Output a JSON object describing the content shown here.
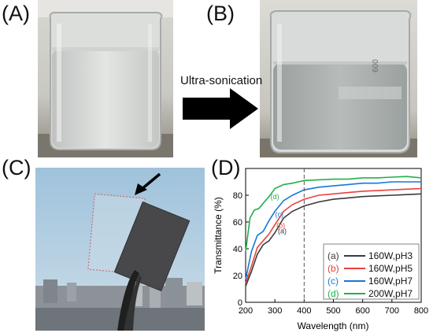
{
  "panels": {
    "a": {
      "label": "(A)"
    },
    "b": {
      "label": "(B)"
    },
    "c": {
      "label": "(C)"
    },
    "d": {
      "label": "(D)"
    }
  },
  "arrow": {
    "label": "Ultra-sonication"
  },
  "beaker_marks": {
    "b_scale": "600"
  },
  "colors": {
    "a": "#3a3a3a",
    "b": "#e8413c",
    "c": "#1577d8",
    "d": "#22b04b",
    "sample_outline": "#e02020"
  },
  "chart_data": {
    "type": "line",
    "xlabel": "Wavelength (nm)",
    "ylabel": "Transmittance (%)",
    "xlim": [
      200,
      800
    ],
    "ylim": [
      0,
      100
    ],
    "xticks": [
      200,
      300,
      400,
      500,
      600,
      700,
      800
    ],
    "yticks": [
      0,
      20,
      40,
      60,
      80
    ],
    "reference_line_x": 400,
    "legend_position": "bottom-right",
    "series": [
      {
        "name": "160W,pH3",
        "tag": "(a)",
        "x": [
          200,
          220,
          240,
          260,
          280,
          300,
          330,
          360,
          400,
          450,
          500,
          550,
          600,
          650,
          700,
          750,
          800
        ],
        "y": [
          12,
          23,
          36,
          43,
          46,
          52,
          63,
          68,
          72,
          75,
          77,
          78,
          79,
          79.5,
          80,
          80.5,
          81
        ]
      },
      {
        "name": "160W,pH5",
        "tag": "(b)",
        "x": [
          200,
          220,
          240,
          260,
          280,
          300,
          330,
          360,
          400,
          450,
          500,
          550,
          600,
          650,
          700,
          750,
          800
        ],
        "y": [
          14,
          27,
          41,
          46,
          51,
          58,
          68,
          73,
          77,
          80,
          81,
          82,
          83,
          83.5,
          84,
          84.5,
          85
        ]
      },
      {
        "name": "160W,pH7",
        "tag": "(c)",
        "x": [
          200,
          220,
          240,
          260,
          280,
          300,
          330,
          360,
          400,
          450,
          500,
          550,
          600,
          650,
          700,
          750,
          800
        ],
        "y": [
          17,
          38,
          50,
          53,
          61,
          68,
          76,
          80,
          84,
          86,
          87,
          88,
          89,
          89,
          90,
          90,
          90
        ]
      },
      {
        "name": "200W,pH7",
        "tag": "(d)",
        "x": [
          200,
          215,
          230,
          245,
          260,
          280,
          300,
          330,
          360,
          400,
          450,
          500,
          550,
          600,
          650,
          700,
          750,
          800
        ],
        "y": [
          38,
          63,
          69,
          70,
          74,
          79,
          85,
          88,
          89,
          91,
          91.5,
          92,
          92,
          93,
          93,
          93.5,
          94,
          93
        ]
      }
    ]
  }
}
